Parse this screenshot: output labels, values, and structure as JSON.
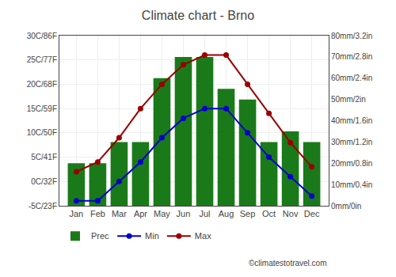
{
  "chart_data": {
    "type": "bar",
    "title": "Climate chart - Brno",
    "categories": [
      "Jan",
      "Feb",
      "Mar",
      "Apr",
      "May",
      "Jun",
      "Jul",
      "Aug",
      "Sep",
      "Oct",
      "Nov",
      "Dec"
    ],
    "series": [
      {
        "name": "Prec",
        "type": "bar",
        "axis": "y2",
        "color": "#1a7a1a",
        "values": [
          20,
          20,
          30,
          30,
          60,
          70,
          70,
          55,
          50,
          30,
          35,
          30
        ]
      },
      {
        "name": "Min",
        "type": "line",
        "color": "#0000cc",
        "marker": "circle",
        "values": [
          -4,
          -4,
          0,
          4,
          9,
          13,
          15,
          15,
          10,
          5,
          1,
          -3
        ]
      },
      {
        "name": "Max",
        "type": "line",
        "color": "#990000",
        "marker": "circle",
        "values": [
          2,
          4,
          9,
          15,
          20,
          24,
          26,
          26,
          20,
          14,
          8,
          3
        ]
      }
    ],
    "ylim": [
      -5,
      30
    ],
    "yticks": [
      {
        "value": -5,
        "label": "-5C/23F"
      },
      {
        "value": 0,
        "label": "0C/32F"
      },
      {
        "value": 5,
        "label": "5C/41F"
      },
      {
        "value": 10,
        "label": "10C/50F"
      },
      {
        "value": 15,
        "label": "15C/59F"
      },
      {
        "value": 20,
        "label": "20C/68F"
      },
      {
        "value": 25,
        "label": "25C/77F"
      },
      {
        "value": 30,
        "label": "30C/86F"
      }
    ],
    "y2lim": [
      0,
      80
    ],
    "y2ticks": [
      {
        "value": 0,
        "label": "0mm/0in"
      },
      {
        "value": 10,
        "label": "10mm/0.4in"
      },
      {
        "value": 20,
        "label": "20mm/0.8in"
      },
      {
        "value": 30,
        "label": "30mm/1.2in"
      },
      {
        "value": 40,
        "label": "40mm/1.6in"
      },
      {
        "value": 50,
        "label": "50mm/2in"
      },
      {
        "value": 60,
        "label": "60mm/2.4in"
      },
      {
        "value": 70,
        "label": "70mm/2.8in"
      },
      {
        "value": 80,
        "label": "80mm/3.2in"
      }
    ],
    "grid": true,
    "legend": "bottom",
    "annotations": [
      "©climatestotravel.com"
    ]
  }
}
